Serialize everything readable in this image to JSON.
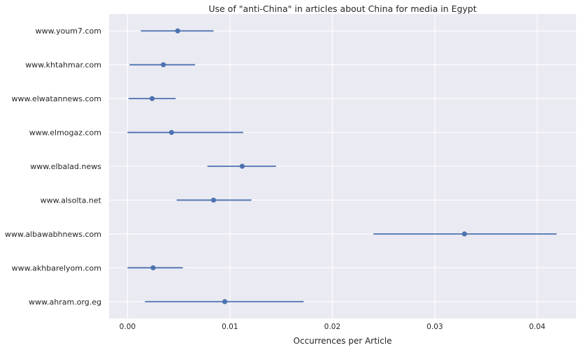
{
  "chart_data": {
    "type": "scatter",
    "title": "Use of \"anti-China\" in articles about China for media in Egypt",
    "xlabel": "Occurrences per Article",
    "ylabel": "",
    "xlim": [
      -0.0018,
      0.0438
    ],
    "xticks": [
      0.0,
      0.01,
      0.02,
      0.03,
      0.04
    ],
    "xtick_labels": [
      "0.00",
      "0.01",
      "0.02",
      "0.03",
      "0.04"
    ],
    "grid": true,
    "error_bars": true,
    "point_color": "#4c72b0",
    "background_color": "#eaeaf2",
    "categories": [
      "www.youm7.com",
      "www.khtahmar.com",
      "www.elwatannews.com",
      "www.elmogaz.com",
      "www.elbalad.news",
      "www.alsolta.net",
      "www.albawabhnews.com",
      "www.akhbarelyom.com",
      "www.ahram.org.eg"
    ],
    "values": [
      0.0049,
      0.0035,
      0.0024,
      0.0043,
      0.0112,
      0.0084,
      0.0329,
      0.0025,
      0.0095
    ],
    "lower": [
      0.0013,
      0.0002,
      0.0001,
      0.0,
      0.0078,
      0.0048,
      0.024,
      0.0,
      0.0017
    ],
    "upper": [
      0.0084,
      0.0066,
      0.0047,
      0.0113,
      0.0145,
      0.0121,
      0.0419,
      0.0054,
      0.0172
    ]
  }
}
